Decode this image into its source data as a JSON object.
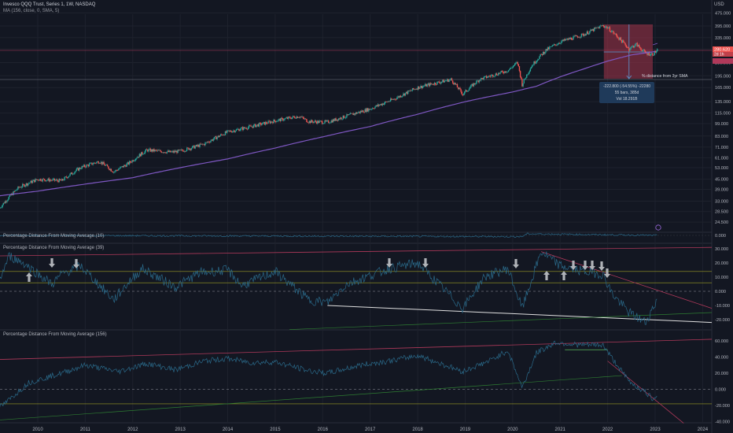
{
  "header": {
    "symbol_line": "Invesco QQQ Trust, Series 1, 1W, NASDAQ",
    "ma_line": "MA (156, close, 0, SMA, 5)",
    "currency": "USD"
  },
  "price_tags": {
    "last": "280.620",
    "countdown": "2d 1h"
  },
  "annotations": {
    "distance_note": "% distance from 3yr SMA",
    "measure_lines": [
      "-222.800 (-54.55%) -22280",
      "55 bars, 385d",
      "Vol 18.291B"
    ]
  },
  "pane_titles": {
    "p2": "Percentage Distance From Moving Average (10)",
    "p3": "Percentage Distance From Moving Average (39)",
    "p4": "Percentage Distance From Moving Average (156)"
  },
  "colors": {
    "background": "#131722",
    "candle_up": "#26a69a",
    "candle_down": "#ef5350",
    "sma": "#7e57c2",
    "osc": "#2a6a8a",
    "trend_red": "#b0395a",
    "trend_green": "#2e7d32",
    "horiz_yellow": "#9e9d24",
    "arrow": "#b0b3b8"
  },
  "chart_data": [
    {
      "type": "candlestick",
      "title": "Invesco QQQ Trust, Series 1, 1W, NASDAQ",
      "scale": "log",
      "x_ticks": [
        "2010",
        "2011",
        "2012",
        "2013",
        "2014",
        "2015",
        "2016",
        "2017",
        "2018",
        "2019",
        "2020",
        "2021",
        "2022",
        "2023",
        "2024"
      ],
      "y_ticks": [
        "475.000",
        "395.000",
        "335.000",
        "285.000",
        "235.000",
        "195.000",
        "165.000",
        "135.000",
        "115.000",
        "99.000",
        "83.000",
        "71.000",
        "61.000",
        "53.000",
        "45.000",
        "39.000",
        "33.000",
        "28.500",
        "24.500"
      ],
      "series": [
        {
          "name": "QQQ close",
          "x": [
            2009.2,
            2009.6,
            2010.0,
            2010.5,
            2010.9,
            2011.3,
            2011.6,
            2011.9,
            2012.3,
            2012.8,
            2013.0,
            2013.5,
            2014.0,
            2014.5,
            2015.0,
            2015.5,
            2015.7,
            2016.1,
            2016.5,
            2017.0,
            2017.5,
            2018.0,
            2018.7,
            2018.95,
            2019.3,
            2019.9,
            2020.1,
            2020.2,
            2020.4,
            2020.7,
            2021.0,
            2021.5,
            2021.9,
            2022.0,
            2022.45,
            2022.6,
            2022.8,
            2022.95,
            2023.05
          ],
          "y": [
            30,
            40,
            45,
            44,
            53,
            58,
            50,
            56,
            68,
            66,
            67,
            74,
            88,
            95,
            103,
            110,
            102,
            101,
            110,
            122,
            140,
            165,
            185,
            150,
            185,
            210,
            235,
            172,
            225,
            280,
            315,
            350,
            398,
            385,
            285,
            305,
            268,
            265,
            280
          ]
        },
        {
          "name": "MA (156, close, 0, SMA, 5)",
          "x": [
            2009.0,
            2010.0,
            2011.0,
            2012.0,
            2013.0,
            2014.0,
            2015.0,
            2016.0,
            2017.0,
            2018.0,
            2019.0,
            2020.0,
            2020.5,
            2021.0,
            2021.5,
            2022.0,
            2022.5,
            2023.0
          ],
          "y": [
            35,
            38,
            42,
            46,
            53,
            60,
            70,
            82,
            95,
            113,
            135,
            155,
            168,
            192,
            215,
            240,
            262,
            275
          ]
        }
      ]
    },
    {
      "type": "line",
      "title": "Percentage Distance From Moving Average (10)",
      "y_ticks": [
        "0.000"
      ],
      "series": [
        {
          "name": "Percentage Distance From Moving Average (10)",
          "x": [
            2009.0,
            2020.2,
            2020.3,
            2023.05
          ],
          "y": [
            0,
            -4,
            5,
            0
          ]
        }
      ]
    },
    {
      "type": "line",
      "title": "Percentage Distance From Moving Average (39)",
      "y_ticks": [
        "30.000",
        "20.000",
        "10.000",
        "0.000",
        "-10.000",
        "-20.000"
      ],
      "ylim": [
        -25,
        33
      ],
      "series": [
        {
          "name": "Percentage Distance From Moving Average (39)",
          "x": [
            2009.0,
            2009.4,
            2009.7,
            2010.3,
            2010.5,
            2010.9,
            2011.6,
            2011.9,
            2012.2,
            2012.9,
            2013.4,
            2014.0,
            2014.3,
            2015.0,
            2015.7,
            2016.1,
            2016.5,
            2017.4,
            2018.0,
            2018.95,
            2019.4,
            2019.9,
            2020.2,
            2020.6,
            2021.0,
            2021.5,
            2021.9,
            2022.1,
            2022.45,
            2022.8,
            2022.95,
            2023.05
          ],
          "y": [
            -8,
            25,
            20,
            5,
            12,
            18,
            -6,
            6,
            16,
            3,
            13,
            15,
            4,
            14,
            -6,
            -8,
            5,
            16,
            20,
            -12,
            10,
            16,
            -12,
            28,
            18,
            14,
            12,
            -2,
            -15,
            -22,
            -12,
            -5
          ]
        }
      ]
    },
    {
      "type": "line",
      "title": "Percentage Distance From Moving Average (156)",
      "y_ticks": [
        "60.000",
        "40.000",
        "20.000",
        "0.000",
        "-20.000",
        "-40.000"
      ],
      "ylim": [
        -42,
        66
      ],
      "series": [
        {
          "name": "Percentage Distance From Moving Average (156)",
          "x": [
            2009.0,
            2009.3,
            2009.8,
            2010.5,
            2011.0,
            2011.7,
            2012.3,
            2012.9,
            2013.5,
            2014.0,
            2014.5,
            2015.0,
            2015.7,
            2016.1,
            2016.8,
            2017.5,
            2018.0,
            2018.95,
            2019.5,
            2019.9,
            2020.2,
            2020.5,
            2020.9,
            2021.4,
            2021.9,
            2022.1,
            2022.45,
            2022.8,
            2022.95,
            2023.05
          ],
          "y": [
            -30,
            -18,
            8,
            20,
            30,
            22,
            32,
            24,
            35,
            38,
            33,
            34,
            23,
            20,
            30,
            36,
            42,
            22,
            35,
            48,
            2,
            45,
            58,
            55,
            55,
            38,
            10,
            -4,
            -12,
            -5
          ]
        }
      ]
    }
  ]
}
